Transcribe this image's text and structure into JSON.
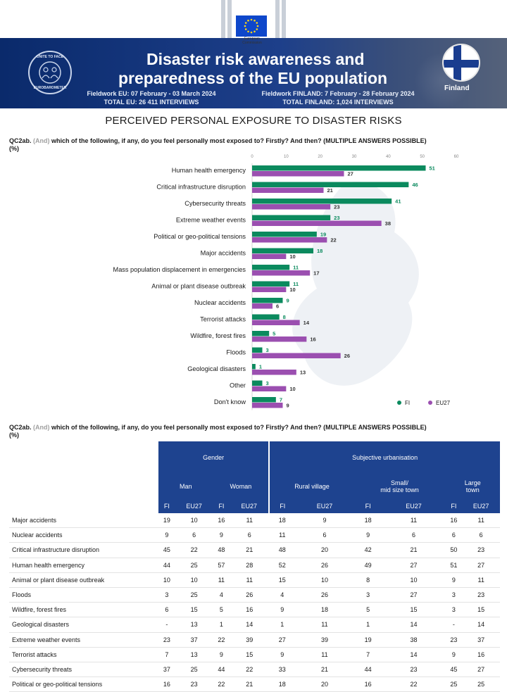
{
  "logo": {
    "name_line1": "European",
    "name_line2": "Commission"
  },
  "banner": {
    "title_line1": "Disaster risk awareness and",
    "title_line2": "preparedness of the EU population",
    "fieldwork_eu": "Fieldwork EU: 07 February - 03 March 2024",
    "total_eu": "TOTAL EU: 26 411 INTERVIEWS",
    "fieldwork_fi": "Fieldwork FINLAND: 7 February - 28 February 2024",
    "total_fi": "TOTAL FINLAND: 1,024 INTERVIEWS",
    "country": "Finland",
    "badge_top": "UNITE TO FACE",
    "badge_bottom": "EUROBAROMETER"
  },
  "page_title": "PERCEIVED PERSONAL EXPOSURE TO DISASTER RISKS",
  "question": {
    "code": "QC2ab.",
    "and": "(And)",
    "text": "which of the following, if any, do you feel personally most exposed to? Firstly? And then? (MULTIPLE ANSWERS POSSIBLE)",
    "unit": "(%)"
  },
  "colors": {
    "fi": "#0b8a5e",
    "eu27": "#9b4fb0",
    "table_header": "#1e438f"
  },
  "chart_data": {
    "type": "bar",
    "orientation": "horizontal",
    "xlim": [
      0,
      60
    ],
    "ticks": [
      "0",
      "10",
      "20",
      "30",
      "40",
      "50",
      "60"
    ],
    "categories": [
      "Human health emergency",
      "Critical infrastructure disruption",
      "Cybersecurity threats",
      "Extreme weather events",
      "Political or geo-political tensions",
      "Major accidents",
      "Mass population displacement in emergencies",
      "Animal or plant disease outbreak",
      "Nuclear accidents",
      "Terrorist attacks",
      "Wildfire, forest fires",
      "Floods",
      "Geological disasters",
      "Other",
      "Don't know"
    ],
    "series": [
      {
        "name": "FI",
        "values": [
          51,
          46,
          41,
          23,
          19,
          18,
          11,
          11,
          9,
          8,
          5,
          3,
          1,
          3,
          7
        ]
      },
      {
        "name": "EU27",
        "values": [
          27,
          21,
          23,
          38,
          22,
          10,
          17,
          10,
          6,
          14,
          16,
          26,
          13,
          10,
          9
        ]
      }
    ],
    "legend_position": "bottom-right"
  },
  "table": {
    "group_gender": "Gender",
    "group_urban": "Subjective urbanisation",
    "sub_man": "Man",
    "sub_woman": "Woman",
    "sub_rural": "Rural village",
    "sub_small_1": "Small/",
    "sub_small_2": "mid size town",
    "sub_large_1": "Large",
    "sub_large_2": "town",
    "col_fi": "FI",
    "col_eu": "EU27",
    "rows": [
      {
        "label": "Major accidents",
        "v": [
          "19",
          "10",
          "16",
          "11",
          "18",
          "9",
          "18",
          "11",
          "16",
          "11"
        ]
      },
      {
        "label": "Nuclear accidents",
        "v": [
          "9",
          "6",
          "9",
          "6",
          "11",
          "6",
          "9",
          "6",
          "6",
          "6"
        ]
      },
      {
        "label": "Critical infrastructure disruption",
        "v": [
          "45",
          "22",
          "48",
          "21",
          "48",
          "20",
          "42",
          "21",
          "50",
          "23"
        ]
      },
      {
        "label": "Human health emergency",
        "v": [
          "44",
          "25",
          "57",
          "28",
          "52",
          "26",
          "49",
          "27",
          "51",
          "27"
        ]
      },
      {
        "label": "Animal or plant disease outbreak",
        "v": [
          "10",
          "10",
          "11",
          "11",
          "15",
          "10",
          "8",
          "10",
          "9",
          "11"
        ]
      },
      {
        "label": "Floods",
        "v": [
          "3",
          "25",
          "4",
          "26",
          "4",
          "26",
          "3",
          "27",
          "3",
          "23"
        ]
      },
      {
        "label": "Wildfire, forest fires",
        "v": [
          "6",
          "15",
          "5",
          "16",
          "9",
          "18",
          "5",
          "15",
          "3",
          "15"
        ]
      },
      {
        "label": "Geological disasters",
        "v": [
          "-",
          "13",
          "1",
          "14",
          "1",
          "11",
          "1",
          "14",
          "-",
          "14"
        ]
      },
      {
        "label": "Extreme weather events",
        "v": [
          "23",
          "37",
          "22",
          "39",
          "27",
          "39",
          "19",
          "38",
          "23",
          "37"
        ]
      },
      {
        "label": "Terrorist attacks",
        "v": [
          "7",
          "13",
          "9",
          "15",
          "9",
          "11",
          "7",
          "14",
          "9",
          "16"
        ]
      },
      {
        "label": "Cybersecurity threats",
        "v": [
          "37",
          "25",
          "44",
          "22",
          "33",
          "21",
          "44",
          "23",
          "45",
          "27"
        ]
      },
      {
        "label": "Political or geo-political tensions",
        "v": [
          "16",
          "23",
          "22",
          "21",
          "18",
          "20",
          "16",
          "22",
          "25",
          "25"
        ]
      }
    ]
  }
}
